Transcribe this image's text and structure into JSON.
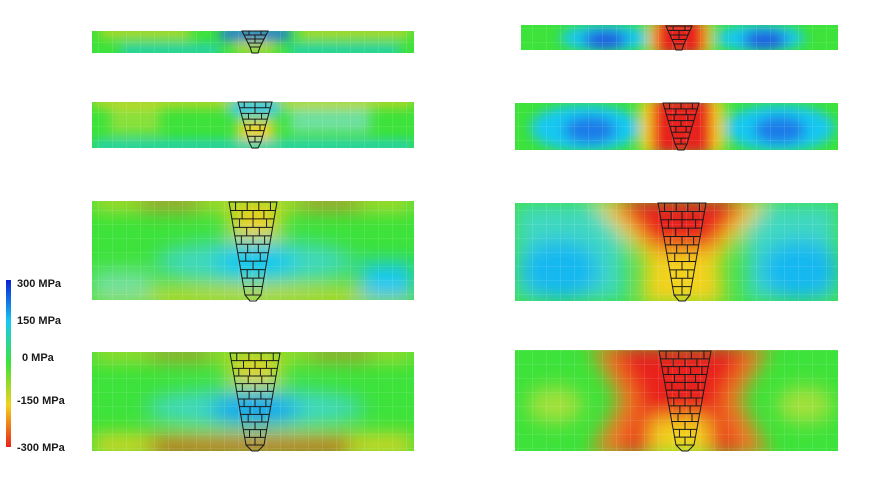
{
  "legend": {
    "ticks": [
      "300 MPa",
      "150 MPa",
      "0 MPa",
      "-150 MPa",
      "-300 MPa"
    ],
    "colors": [
      "#0a1fd6",
      "#19c8f0",
      "#3de23a",
      "#f2d21c",
      "#e8231a"
    ]
  },
  "panels": {
    "left": [
      {
        "row": 1,
        "pattern": "mixed-thin"
      },
      {
        "row": 2,
        "pattern": "mixed-thin"
      },
      {
        "row": 3,
        "pattern": "mixed-thick"
      },
      {
        "row": 4,
        "pattern": "mixed-thick"
      }
    ],
    "right": [
      {
        "row": 1,
        "pattern": "compressive-center"
      },
      {
        "row": 2,
        "pattern": "compressive-center"
      },
      {
        "row": 3,
        "pattern": "compressive-center"
      },
      {
        "row": 4,
        "pattern": "compressive-center"
      }
    ]
  }
}
